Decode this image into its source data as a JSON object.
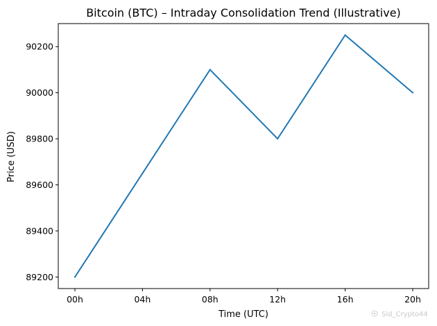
{
  "chart_data": {
    "type": "line",
    "title": "Bitcoin (BTC) – Intraday Consolidation Trend (Illustrative)",
    "xlabel": "Time (UTC)",
    "ylabel": "Price (USD)",
    "categories": [
      "00h",
      "04h",
      "08h",
      "12h",
      "16h",
      "20h"
    ],
    "series": [
      {
        "values": [
          89200,
          89650,
          90100,
          89800,
          90250,
          90000
        ],
        "color": "#1f77b4"
      }
    ],
    "ylim": [
      89150,
      90300
    ],
    "yticks": [
      89200,
      89400,
      89600,
      89800,
      90000,
      90200
    ],
    "grid": false,
    "legend": "none"
  },
  "watermark": {
    "text": "Sid_Crypto44",
    "icon": "watermark-logo-icon"
  }
}
